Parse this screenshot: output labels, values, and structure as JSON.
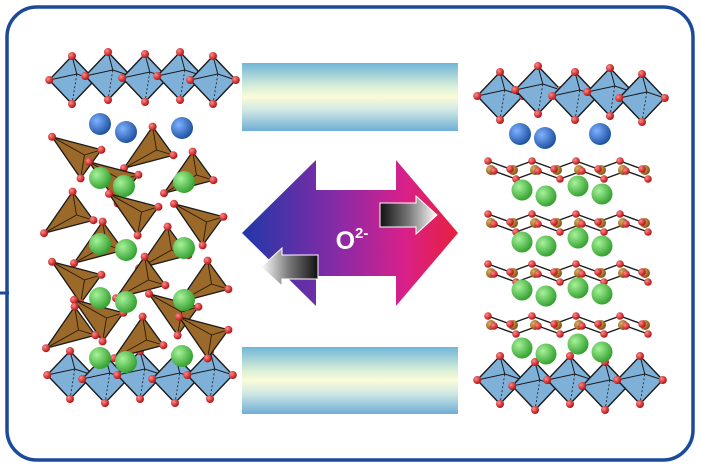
{
  "figure": {
    "ion_label": "O",
    "ion_charge": "2-"
  },
  "colors": {
    "frame_border": "#1b4a9a",
    "octahedron_fill": "#7fb0d8",
    "tetrahedron_fill": "#9b6a2a",
    "cation_large": "#2a66b8",
    "cation_green": "#4cc24a",
    "oxygen": "#d21e1e",
    "iron": "#a8762a",
    "arrow_left_end": "#2038a8",
    "arrow_right_end": "#e8203c"
  },
  "structures": {
    "left": {
      "name": "brownmillerite-structure"
    },
    "right": {
      "name": "infinite-layer-structure"
    }
  },
  "icons": [
    "substrate-bar-icon",
    "double-arrow-icon",
    "oxygen-flow-icon"
  ]
}
